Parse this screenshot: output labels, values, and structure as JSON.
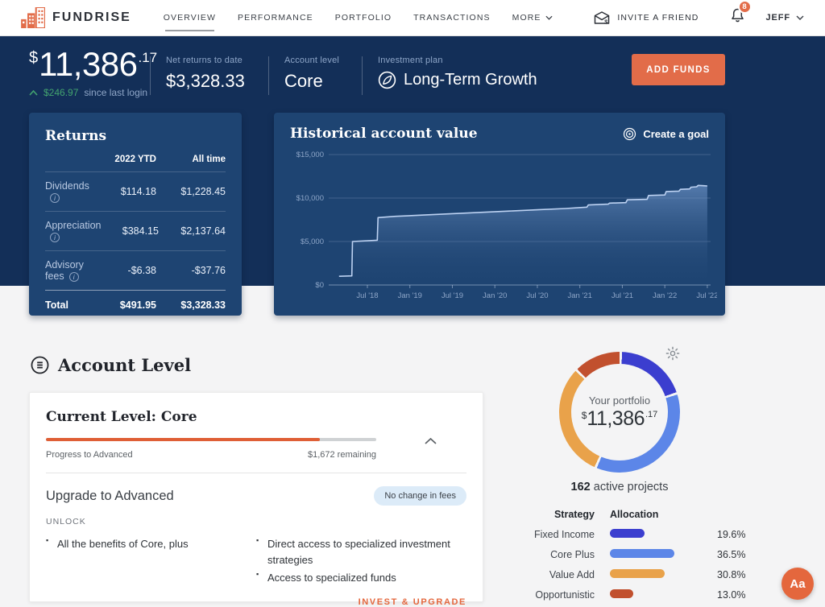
{
  "brand": {
    "name": "FUNDRISE"
  },
  "nav": {
    "items": [
      {
        "label": "OVERVIEW",
        "active": true,
        "dropdown": false
      },
      {
        "label": "PERFORMANCE",
        "active": false,
        "dropdown": false
      },
      {
        "label": "PORTFOLIO",
        "active": false,
        "dropdown": false
      },
      {
        "label": "TRANSACTIONS",
        "active": false,
        "dropdown": false
      },
      {
        "label": "MORE",
        "active": false,
        "dropdown": true
      }
    ],
    "invite_label": "INVITE A FRIEND",
    "notification_count": "8",
    "user_name": "JEFF"
  },
  "hero": {
    "balance_currency": "$",
    "balance_whole": "11,386",
    "balance_cents": ".17",
    "change_amount": "$246.97",
    "change_note": "since last login",
    "stats": [
      {
        "label": "Net returns to date",
        "value": "$3,328.33"
      },
      {
        "label": "Account level",
        "value": "Core"
      },
      {
        "label": "Investment plan",
        "value": "Long-Term Growth"
      }
    ],
    "add_funds_label": "ADD FUNDS"
  },
  "returns_card": {
    "title": "Returns",
    "col_ytd": "2022 YTD",
    "col_all": "All time",
    "rows": [
      {
        "label": "Dividends",
        "ytd": "$114.18",
        "all": "$1,228.45"
      },
      {
        "label": "Appreciation",
        "ytd": "$384.15",
        "all": "$2,137.64"
      },
      {
        "label": "Advisory fees",
        "ytd": "-$6.38",
        "all": "-$37.76"
      }
    ],
    "total": {
      "label": "Total",
      "ytd": "$491.95",
      "all": "$3,328.33"
    }
  },
  "chart_card": {
    "title": "Historical account value",
    "action_label": "Create a goal"
  },
  "chart_data": {
    "type": "area",
    "title": "Historical account value",
    "series_name": "Account value ($)",
    "x_unit": "months since Mar 2018",
    "ylim": [
      0,
      15000
    ],
    "grid": true,
    "y_ticks": [
      {
        "label": "$0",
        "value": 0
      },
      {
        "label": "$5,000",
        "value": 5000
      },
      {
        "label": "$10,000",
        "value": 10000
      },
      {
        "label": "$15,000",
        "value": 15000
      }
    ],
    "x_ticks": [
      {
        "label": "Jul '18",
        "t": 4
      },
      {
        "label": "Jan '19",
        "t": 10
      },
      {
        "label": "Jul '19",
        "t": 16
      },
      {
        "label": "Jan '20",
        "t": 22
      },
      {
        "label": "Jul '20",
        "t": 28
      },
      {
        "label": "Jan '21",
        "t": 34
      },
      {
        "label": "Jul '21",
        "t": 40
      },
      {
        "label": "Jan '22",
        "t": 46
      },
      {
        "label": "Jul '22",
        "t": 52
      }
    ],
    "points": [
      [
        0,
        1000
      ],
      [
        1.8,
        1050
      ],
      [
        1.9,
        5000
      ],
      [
        5.4,
        5150
      ],
      [
        5.5,
        7750
      ],
      [
        8,
        7900
      ],
      [
        12,
        8050
      ],
      [
        16,
        8200
      ],
      [
        20,
        8350
      ],
      [
        24,
        8500
      ],
      [
        28,
        8650
      ],
      [
        32,
        8800
      ],
      [
        35,
        8950
      ],
      [
        35.2,
        9200
      ],
      [
        38,
        9300
      ],
      [
        38.2,
        9420
      ],
      [
        40.5,
        9470
      ],
      [
        40.7,
        9800
      ],
      [
        43.5,
        9850
      ],
      [
        43.7,
        10300
      ],
      [
        46,
        10350
      ],
      [
        46.2,
        10750
      ],
      [
        48,
        10800
      ],
      [
        48.2,
        11000
      ],
      [
        49.5,
        11050
      ],
      [
        49.7,
        11250
      ],
      [
        50.5,
        11300
      ],
      [
        50.7,
        11450
      ],
      [
        51.5,
        11420
      ],
      [
        52,
        11386
      ]
    ]
  },
  "account_level": {
    "heading": "Account Level",
    "card": {
      "title": "Current Level: Core",
      "progress_pct": 83,
      "progress_label": "Progress to Advanced",
      "remaining_label": "$1,672 remaining",
      "upgrade_title": "Upgrade to Advanced",
      "fee_badge": "No change in fees",
      "unlock_label": "UNLOCK",
      "bullets_left": [
        "All the benefits of Core, plus"
      ],
      "bullets_right": [
        "Direct access to specialized investment strategies",
        "Access to specialized funds"
      ],
      "cta_label": "INVEST & UPGRADE"
    }
  },
  "portfolio": {
    "center_label": "Your portfolio",
    "amount_currency": "$",
    "amount_whole": "11,386",
    "amount_cents": ".17",
    "projects_count": "162",
    "projects_label": "active projects",
    "table": {
      "header_strategy": "Strategy",
      "header_allocation": "Allocation",
      "rows": [
        {
          "label": "Fixed Income",
          "pct": 19.6,
          "display": "19.6%",
          "color": "#3b3ecf"
        },
        {
          "label": "Core Plus",
          "pct": 36.5,
          "display": "36.5%",
          "color": "#5c86e8"
        },
        {
          "label": "Value Add",
          "pct": 30.8,
          "display": "30.8%",
          "color": "#e9a24a"
        },
        {
          "label": "Opportunistic",
          "pct": 13.0,
          "display": "13.0%",
          "color": "#c1502e"
        }
      ]
    }
  },
  "a11y_label": "Aa",
  "colors": {
    "accent_orange": "#e26c49",
    "navy_bg": "#132f58",
    "navy_card": "#1e4472",
    "green": "#43a46f",
    "page_bg": "#f4f4f5",
    "chart_line": "#bdd2f2"
  }
}
